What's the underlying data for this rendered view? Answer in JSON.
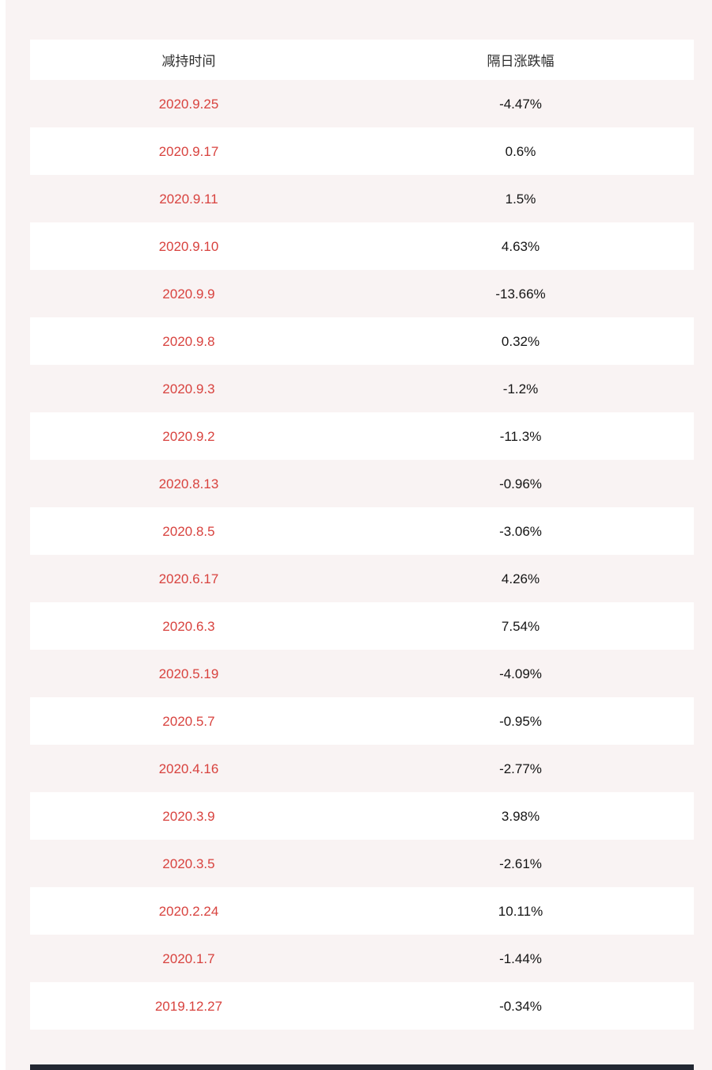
{
  "colors": {
    "page_background": "#f9f3f3",
    "row_white": "#ffffff",
    "date_red": "#d8423e",
    "value_black": "#141414",
    "header_text": "#2d2d2d",
    "bottom_bar": "#232732"
  },
  "table": {
    "headers": [
      "减持时间",
      "隔日涨跌幅"
    ],
    "rows": [
      {
        "date": "2020.9.25",
        "change": "-4.47%"
      },
      {
        "date": "2020.9.17",
        "change": "0.6%"
      },
      {
        "date": "2020.9.11",
        "change": "1.5%"
      },
      {
        "date": "2020.9.10",
        "change": "4.63%"
      },
      {
        "date": "2020.9.9",
        "change": "-13.66%"
      },
      {
        "date": "2020.9.8",
        "change": "0.32%"
      },
      {
        "date": "2020.9.3",
        "change": "-1.2%"
      },
      {
        "date": "2020.9.2",
        "change": "-11.3%"
      },
      {
        "date": "2020.8.13",
        "change": "-0.96%"
      },
      {
        "date": "2020.8.5",
        "change": "-3.06%"
      },
      {
        "date": "2020.6.17",
        "change": "4.26%"
      },
      {
        "date": "2020.6.3",
        "change": "7.54%"
      },
      {
        "date": "2020.5.19",
        "change": "-4.09%"
      },
      {
        "date": "2020.5.7",
        "change": "-0.95%"
      },
      {
        "date": "2020.4.16",
        "change": "-2.77%"
      },
      {
        "date": "2020.3.9",
        "change": "3.98%"
      },
      {
        "date": "2020.3.5",
        "change": "-2.61%"
      },
      {
        "date": "2020.2.24",
        "change": "10.11%"
      },
      {
        "date": "2020.1.7",
        "change": "-1.44%"
      },
      {
        "date": "2019.12.27",
        "change": "-0.34%"
      }
    ]
  },
  "chart_data": {
    "type": "table",
    "columns": [
      "减持时间",
      "隔日涨跌幅"
    ],
    "rows": [
      [
        "2020.9.25",
        "-4.47%"
      ],
      [
        "2020.9.17",
        "0.6%"
      ],
      [
        "2020.9.11",
        "1.5%"
      ],
      [
        "2020.9.10",
        "4.63%"
      ],
      [
        "2020.9.9",
        "-13.66%"
      ],
      [
        "2020.9.8",
        "0.32%"
      ],
      [
        "2020.9.3",
        "-1.2%"
      ],
      [
        "2020.9.2",
        "-11.3%"
      ],
      [
        "2020.8.13",
        "-0.96%"
      ],
      [
        "2020.8.5",
        "-3.06%"
      ],
      [
        "2020.6.17",
        "4.26%"
      ],
      [
        "2020.6.3",
        "7.54%"
      ],
      [
        "2020.5.19",
        "-4.09%"
      ],
      [
        "2020.5.7",
        "-0.95%"
      ],
      [
        "2020.4.16",
        "-2.77%"
      ],
      [
        "2020.3.9",
        "3.98%"
      ],
      [
        "2020.3.5",
        "-2.61%"
      ],
      [
        "2020.2.24",
        "10.11%"
      ],
      [
        "2020.1.7",
        "-1.44%"
      ],
      [
        "2019.12.27",
        "-0.34%"
      ]
    ],
    "change_values_pct": [
      -4.47,
      0.6,
      1.5,
      4.63,
      -13.66,
      0.32,
      -1.2,
      -11.3,
      -0.96,
      -3.06,
      4.26,
      7.54,
      -4.09,
      -0.95,
      -2.77,
      3.98,
      -2.61,
      10.11,
      -1.44,
      -0.34
    ],
    "layout": {
      "striped_rows": true,
      "stripe_colors": [
        "#f9f3f3",
        "#ffffff"
      ],
      "header_background": "#ffffff"
    }
  }
}
